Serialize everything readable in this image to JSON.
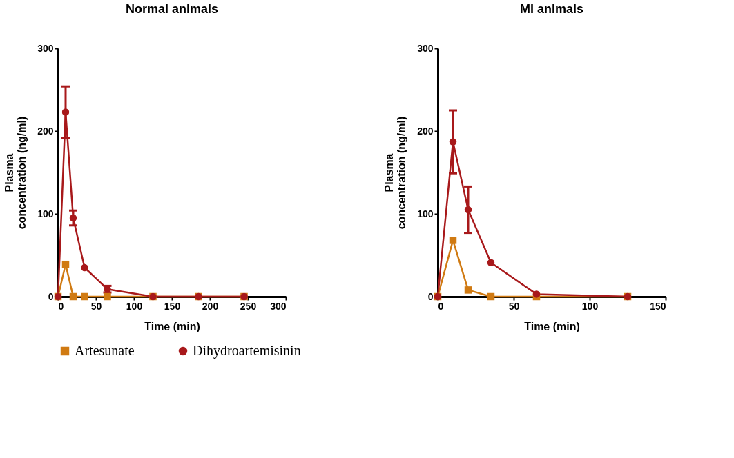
{
  "chart_data": [
    {
      "type": "line",
      "title": "Normal animals",
      "xlabel": "Time (min)",
      "ylabel": "Plasma\nconcentration (ng/ml)",
      "xlim": [
        0,
        300
      ],
      "xticks": [
        0,
        50,
        100,
        150,
        200,
        250,
        300
      ],
      "ylim": [
        0,
        300
      ],
      "yticks": [
        0,
        100,
        200,
        300
      ],
      "grid": false,
      "legend": "bottom",
      "line_style": "solid",
      "x": [
        0,
        10,
        20,
        35,
        65,
        125,
        185,
        245
      ],
      "series": [
        {
          "name": "Artesunate",
          "color": "#d07a12",
          "marker": "square",
          "values": [
            0,
            39,
            0,
            0,
            0,
            0,
            0,
            0
          ]
        },
        {
          "name": "Dihydroartemisinin",
          "color": "#a8191b",
          "marker": "circle",
          "values": [
            0,
            223,
            95,
            35,
            9,
            0,
            0,
            0
          ],
          "errors": [
            null,
            31,
            9,
            null,
            4,
            null,
            null,
            null
          ]
        }
      ]
    },
    {
      "type": "line",
      "title": "MI animals",
      "xlabel": "Time (min)",
      "ylabel": "Plasma\nconcentration (ng/ml)",
      "xlim": [
        0,
        150
      ],
      "xticks": [
        0,
        50,
        100,
        150
      ],
      "ylim": [
        0,
        300
      ],
      "yticks": [
        0,
        100,
        200,
        300
      ],
      "grid": false,
      "legend": "bottom",
      "line_style": "solid",
      "x": [
        0,
        10,
        20,
        35,
        65,
        125
      ],
      "series": [
        {
          "name": "Artesunate",
          "color": "#d07a12",
          "marker": "square",
          "values": [
            0,
            68,
            8,
            0,
            0,
            0
          ]
        },
        {
          "name": "Dihydroartemisinin",
          "color": "#a8191b",
          "marker": "circle",
          "values": [
            0,
            187,
            105,
            41,
            3,
            0
          ],
          "errors": [
            null,
            38,
            28,
            null,
            null,
            null
          ]
        }
      ]
    }
  ]
}
